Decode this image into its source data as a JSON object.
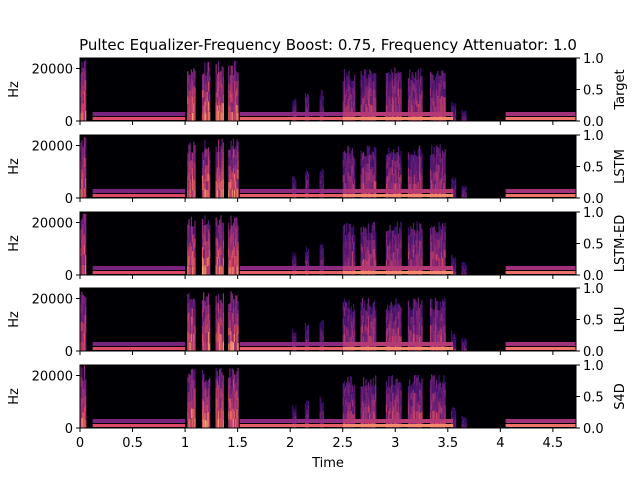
{
  "chart_data": {
    "type": "heatmap",
    "title": "Pultec Equalizer-Frequency Boost: 0.75, Frequency Attenuator: 1.0",
    "xlabel": "Time",
    "xlim": [
      0,
      4.72
    ],
    "x_ticks": [
      "0",
      "0.5",
      "1",
      "1.5",
      "2",
      "2.5",
      "3",
      "3.5",
      "4",
      "4.5"
    ],
    "x_tick_values": [
      0,
      0.5,
      1,
      1.5,
      2,
      2.5,
      3,
      3.5,
      4,
      4.5
    ],
    "ylabel": "Hz",
    "ylim": [
      0,
      24000
    ],
    "y_ticks": [
      "0",
      "20000"
    ],
    "y_tick_values": [
      0,
      20000
    ],
    "right_ylim": [
      0,
      1
    ],
    "right_ticks": [
      "0.0",
      "0.5",
      "1.0"
    ],
    "right_tick_values": [
      0,
      0.5,
      1
    ],
    "colormap": [
      "#000004",
      "#3b0f70",
      "#8c2981",
      "#de4968",
      "#fe9f6d",
      "#fcfdbf"
    ],
    "panels": [
      {
        "name": "Target"
      },
      {
        "name": "LSTM"
      },
      {
        "name": "LSTM-ED"
      },
      {
        "name": "LRU"
      },
      {
        "name": "S4D"
      }
    ],
    "events": [
      {
        "start": 0.0,
        "end": 0.06,
        "top_hz": 24000,
        "level": 0.7
      },
      {
        "start": 1.02,
        "end": 1.1,
        "top_hz": 23000,
        "level": 0.75
      },
      {
        "start": 1.16,
        "end": 1.24,
        "top_hz": 23000,
        "level": 0.75
      },
      {
        "start": 1.29,
        "end": 1.37,
        "top_hz": 23000,
        "level": 0.75
      },
      {
        "start": 1.41,
        "end": 1.51,
        "top_hz": 23000,
        "level": 0.75
      },
      {
        "start": 2.02,
        "end": 2.06,
        "top_hz": 9000,
        "level": 0.45
      },
      {
        "start": 2.14,
        "end": 2.18,
        "top_hz": 11000,
        "level": 0.45
      },
      {
        "start": 2.28,
        "end": 2.32,
        "top_hz": 12000,
        "level": 0.45
      },
      {
        "start": 2.5,
        "end": 2.62,
        "top_hz": 20000,
        "level": 0.55
      },
      {
        "start": 2.67,
        "end": 2.82,
        "top_hz": 20500,
        "level": 0.6
      },
      {
        "start": 2.91,
        "end": 3.06,
        "top_hz": 20500,
        "level": 0.6
      },
      {
        "start": 3.12,
        "end": 3.26,
        "top_hz": 20500,
        "level": 0.6
      },
      {
        "start": 3.33,
        "end": 3.48,
        "top_hz": 20500,
        "level": 0.6
      },
      {
        "start": 3.53,
        "end": 3.58,
        "top_hz": 8000,
        "level": 0.4
      },
      {
        "start": 3.63,
        "end": 3.68,
        "top_hz": 5000,
        "level": 0.4
      }
    ]
  }
}
